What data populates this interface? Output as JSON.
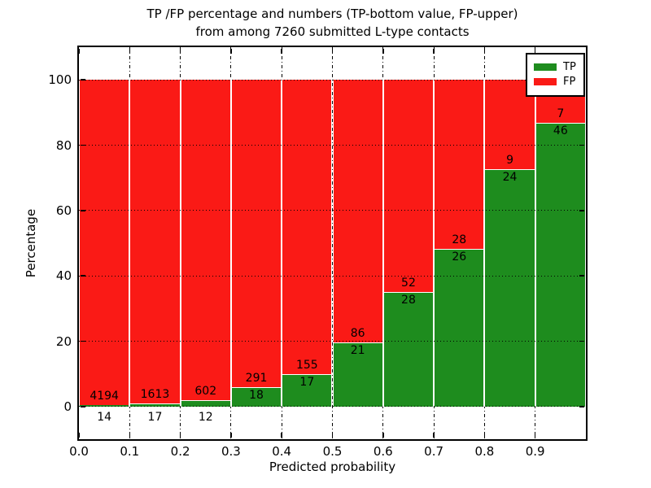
{
  "figure": {
    "title_line1": "TP /FP percentage and numbers (TP-bottom value, FP-upper)",
    "title_line2": "from among 7260 submitted L-type contacts"
  },
  "axes": {
    "x_label": "Predicted probability",
    "y_label": "Percentage",
    "x_tick_labels": [
      "0.0",
      "0.1",
      "0.2",
      "0.3",
      "0.4",
      "0.5",
      "0.6",
      "0.7",
      "0.8",
      "0.9"
    ],
    "y_tick_labels": [
      "0",
      "20",
      "40",
      "60",
      "80",
      "100"
    ],
    "y_tick_values": [
      0,
      20,
      40,
      60,
      80,
      100
    ],
    "x_range": [
      0.0,
      1.0
    ],
    "y_range": [
      -10,
      110
    ],
    "grid": true
  },
  "legend": {
    "position": "upper right",
    "entries": [
      {
        "label": "TP",
        "color": "#1e8c1e"
      },
      {
        "label": "FP",
        "color": "#fa1a16"
      }
    ]
  },
  "chart_data": {
    "type": "bar",
    "stacked": true,
    "normalized": "each bin scaled to 100%",
    "title": "TP /FP percentage and numbers (TP-bottom value, FP-upper) from among 7260 submitted L-type contacts",
    "xlabel": "Predicted probability",
    "ylabel": "Percentage",
    "xlim": [
      0.0,
      1.0
    ],
    "ylim": [
      -10,
      110
    ],
    "bin_width": 0.1,
    "bin_starts": [
      0.0,
      0.1,
      0.2,
      0.3,
      0.4,
      0.5,
      0.6,
      0.7,
      0.8,
      0.9
    ],
    "categories": [
      "0.0-0.1",
      "0.1-0.2",
      "0.2-0.3",
      "0.3-0.4",
      "0.4-0.5",
      "0.5-0.6",
      "0.6-0.7",
      "0.7-0.8",
      "0.8-0.9",
      "0.9-1.0"
    ],
    "series": [
      {
        "name": "TP",
        "color": "#1e8c1e",
        "counts": [
          14,
          17,
          12,
          18,
          17,
          21,
          28,
          26,
          24,
          46
        ]
      },
      {
        "name": "FP",
        "color": "#fa1a16",
        "counts": [
          4194,
          1613,
          602,
          291,
          155,
          86,
          52,
          28,
          9,
          7
        ]
      }
    ],
    "total_submitted": 7260,
    "note": "segment heights are TP and FP percentages of each bin; printed numbers are raw counts"
  }
}
